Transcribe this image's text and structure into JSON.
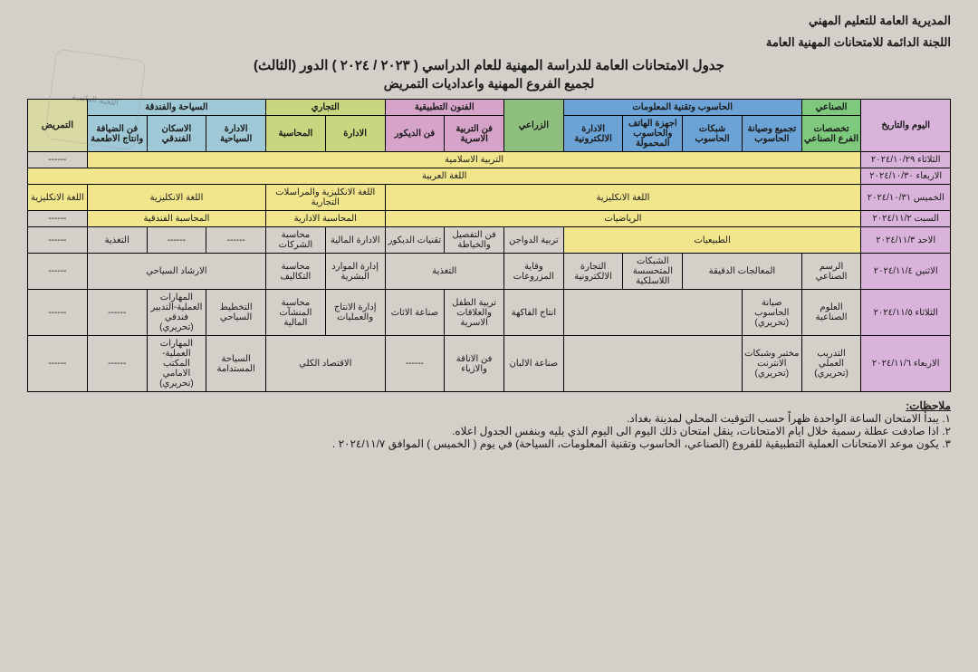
{
  "header_line1": "المديرية العامة للتعليم المهني",
  "header_line2": "اللجنة الدائمة للامتحانات المهنية العامة",
  "title": "جدول الامتحانات العامة للدراسة المهنية للعام الدراسي ( ٢٠٢٣ / ٢٠٢٤ ) الدور (الثالث)",
  "subtitle": "لجميع الفروع المهنية واعداديات التمريض",
  "col_date": "اليوم والتاريخ",
  "grp_ind": "الصناعي",
  "grp_comp": "الحاسوب وتقنية المعلومات",
  "grp_agri": "الزراعي",
  "grp_arts": "الفنون التطبيقية",
  "grp_comm": "التجاري",
  "grp_tour": "السياحة والفندقة",
  "grp_nurs": "التمريض",
  "ind1": "تخصصات الفرع الصناعي",
  "cmp1": "تجميع وصيانة الحاسوب",
  "cmp2": "شبكات الحاسوب",
  "cmp3": "اجهزة الهاتف والحاسوب المحمولة",
  "cmp4": "الادارة الالكترونية",
  "art1": "فن التربية الاسرية",
  "art2": "فن الديكور",
  "com1": "الادارة",
  "com2": "المحاسبة",
  "tou1": "الادارة السياحية",
  "tou2": "الاسكان الفندقي",
  "tou3": "فن الضيافة وانتاج الاطعمة",
  "rows": [
    {
      "date": "الثلاثاء ٢٠٢٤/١٠/٢٩",
      "full": "التربية الاسلامية"
    },
    {
      "date": "الاربعاء ٢٠٢٤/١٠/٣٠",
      "full": "اللغة العربية"
    },
    {
      "date": "الخميس ٢٠٢٤/١٠/٣١",
      "eng_main": "اللغة الانكليزية",
      "eng_comm": "اللغة الانكليزية والمراسلات التجارية",
      "eng_tour": "اللغة الانكليزية",
      "eng_nurs": "اللغة الانكليزية"
    },
    {
      "date": "السبت ٢٠٢٤/١١/٢",
      "math_main": "الرياضيات",
      "acc_admin": "المحاسبة الادارية",
      "acc_hotel": "المحاسبة الفندقية"
    },
    {
      "date": "الاحد ٢٠٢٤/١١/٣",
      "phys": "الطبيعيات",
      "poultry": "تربية الدواجن",
      "tailor": "فن التفصيل والخياطة",
      "decor_tech": "تقنيات الديكور",
      "fin_admin": "الادارة المالية",
      "corp_acc": "محاسبة الشركات",
      "nutrition": "التغذية"
    },
    {
      "date": "الاثنين ٢٠٢٤/١١/٤",
      "ind_draw": "الرسم الصناعي",
      "precise": "المعالجات الدقيقة",
      "wireless": "الشبكات المتحسسة اللاسلكية",
      "ecom": "التجارة الالكترونية",
      "plant": "وقاية المزروعات",
      "nutr2": "التغذية",
      "hr": "إدارة الموارد البشرية",
      "cost": "محاسبة التكاليف",
      "guide": "الارشاد السياحي"
    },
    {
      "date": "الثلاثاء ٢٠٢٤/١١/٥",
      "ind_sci": "العلوم الصناعية",
      "hw_maint": "صيانة الحاسوب (تحريري)",
      "fruit": "انتاج الفاكهة",
      "child": "تربية الطفل والعلاقات الاسرية",
      "furn": "صناعة الاثاث",
      "prod_mgmt": "إدارة الانتاج والعمليات",
      "fac_acc": "محاسبة المنشآت المالية",
      "tour_plan": "التخطيط السياحي",
      "hotel_skill": "المهارات العملية-التدبير فندقي (تحريري)"
    },
    {
      "date": "الاربعاء ٢٠٢٤/١١/٦",
      "practical": "التدريب العملي (تحريري)",
      "net_lab": "مختبر وشبكات الانترنت (تحريري)",
      "dairy": "صناعة الالبان",
      "fashion": "فن الاناقة والازياء",
      "macro": "الاقتصاد الكلي",
      "sust_tour": "السياحة المستدامة",
      "front_skill": "المهارات العملية-المكتب الامامي (تحريري)"
    }
  ],
  "notes_label": "ملاحظات:",
  "note1": "١. يبدأ الامتحان الساعة الواحدة ظهراً حسب التوقيت المحلي لمدينة بغداد.",
  "note2": "٢. اذا صادفت عطلة رسمية خلال ايام الامتحانات، ينقل امتحان ذلك اليوم الى اليوم الذي يليه وبنفس الجدول اعلاه.",
  "note3": "٣. يكون موعد الامتحانات العملية التطبيقية للفروع (الصناعي، الحاسوب وتقنية المعلومات، السياحة) في يوم ( الخميس ) الموافق ٢٠٢٤/١١/٧ ."
}
